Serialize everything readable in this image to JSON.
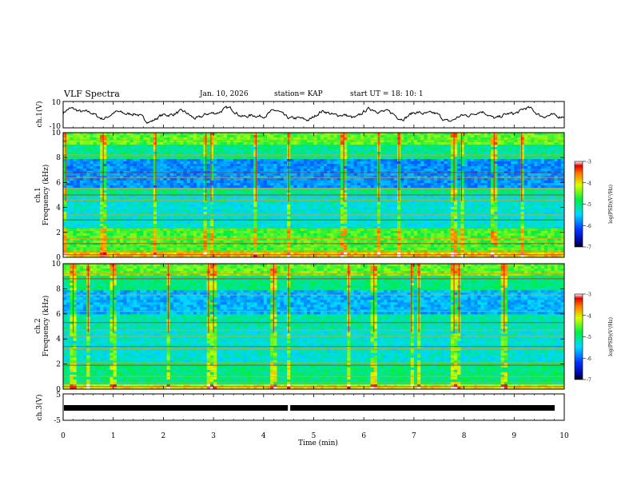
{
  "header": {
    "title": "VLF Spectra",
    "date": "Jan. 10, 2026",
    "station": "station= KAP",
    "start": "start  UT =   18: 10: 1"
  },
  "chart_data": [
    {
      "type": "line",
      "name": "ch1-waveform",
      "ylabel": "ch.1(V)",
      "ylim": [
        -10,
        10
      ],
      "yticks": [
        "10",
        "-10"
      ],
      "xlim": [
        0,
        10
      ],
      "note": "broadband amplitude trace, oscillating roughly between -6 and 6 V"
    },
    {
      "type": "heatmap",
      "name": "ch1-spectrogram",
      "ylabel": "ch.1\nFrequency (kHz)",
      "ylim": [
        0,
        10
      ],
      "yticks": [
        "0",
        "2",
        "4",
        "6",
        "8",
        "10"
      ],
      "xlim": [
        0,
        10
      ],
      "colorbar": {
        "label": "log(PSD)(V²/Hz)",
        "range": [
          -7,
          -3
        ],
        "ticks": [
          "-3",
          "-4",
          "-5",
          "-6",
          "-7"
        ]
      },
      "lines_khz": [
        0.2,
        0.5,
        0.8,
        1.1,
        1.5,
        2.2,
        3.0,
        3.4,
        4.6,
        5.0,
        5.5,
        6.4,
        6.8,
        8.2,
        9.4
      ],
      "spike_min": [
        0.05,
        0.8,
        1.85,
        2.85,
        2.95,
        3.85,
        4.5,
        5.6,
        6.3,
        6.7,
        7.8,
        7.95,
        8.6,
        9.15
      ]
    },
    {
      "type": "heatmap",
      "name": "ch2-spectrogram",
      "ylabel": "ch.2\nFrequency (kHz)",
      "ylim": [
        0,
        10
      ],
      "yticks": [
        "0",
        "2",
        "4",
        "6",
        "8",
        "10"
      ],
      "xlim": [
        0,
        10
      ],
      "colorbar": {
        "label": "log(PSD)(V²/Hz)",
        "range": [
          -7,
          -3
        ],
        "ticks": [
          "-3",
          "-4",
          "-5",
          "-6",
          "-7"
        ]
      },
      "lines_khz": [
        0.2,
        0.5,
        1.0,
        1.9,
        2.1,
        3.2,
        3.4,
        4.2,
        4.7,
        5.3,
        6.2,
        7.5,
        8.8,
        9.2
      ],
      "spike_min": [
        0.2,
        0.5,
        1.0,
        2.1,
        2.9,
        3.0,
        4.2,
        4.5,
        5.7,
        6.2,
        6.95,
        7.1,
        7.8,
        7.9,
        8.8
      ]
    },
    {
      "type": "line",
      "name": "ch3-waveform",
      "ylabel": "ch.3(V)",
      "ylim": [
        -5,
        5
      ],
      "yticks": [
        "5",
        "-5"
      ],
      "xlim": [
        0,
        10
      ],
      "xticks": [
        "0",
        "1",
        "2",
        "3",
        "4",
        "5",
        "6",
        "7",
        "8",
        "9",
        "10"
      ],
      "xlabel": "Time  (min)",
      "level": -1,
      "gap_at": 4.5
    }
  ]
}
